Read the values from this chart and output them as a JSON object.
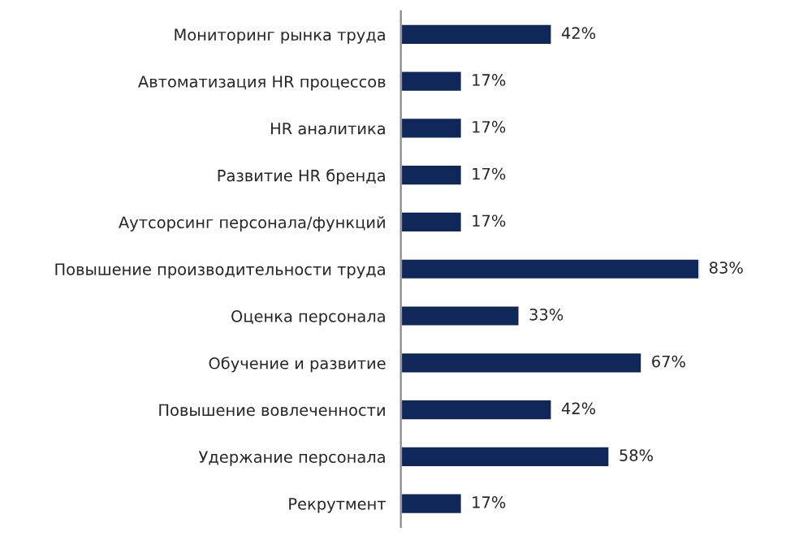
{
  "chart_data": {
    "type": "bar",
    "orientation": "horizontal",
    "categories": [
      "Мониторинг рынка труда",
      "Автоматизация HR процессов",
      "HR аналитика",
      "Развитие HR бренда",
      "Аутсорсинг персонала/функций",
      "Повышение производительности труда",
      "Оценка персонала",
      "Обучение и развитие",
      "Повышение вовлеченности",
      "Удержание персонала",
      "Рекрутмент"
    ],
    "values": [
      42,
      17,
      17,
      17,
      17,
      83,
      33,
      67,
      42,
      58,
      17
    ],
    "value_labels": [
      "42%",
      "17%",
      "17%",
      "17%",
      "17%",
      "83%",
      "33%",
      "67%",
      "42%",
      "58%",
      "17%"
    ],
    "color": "#10275a",
    "grid": false,
    "legend": false
  }
}
